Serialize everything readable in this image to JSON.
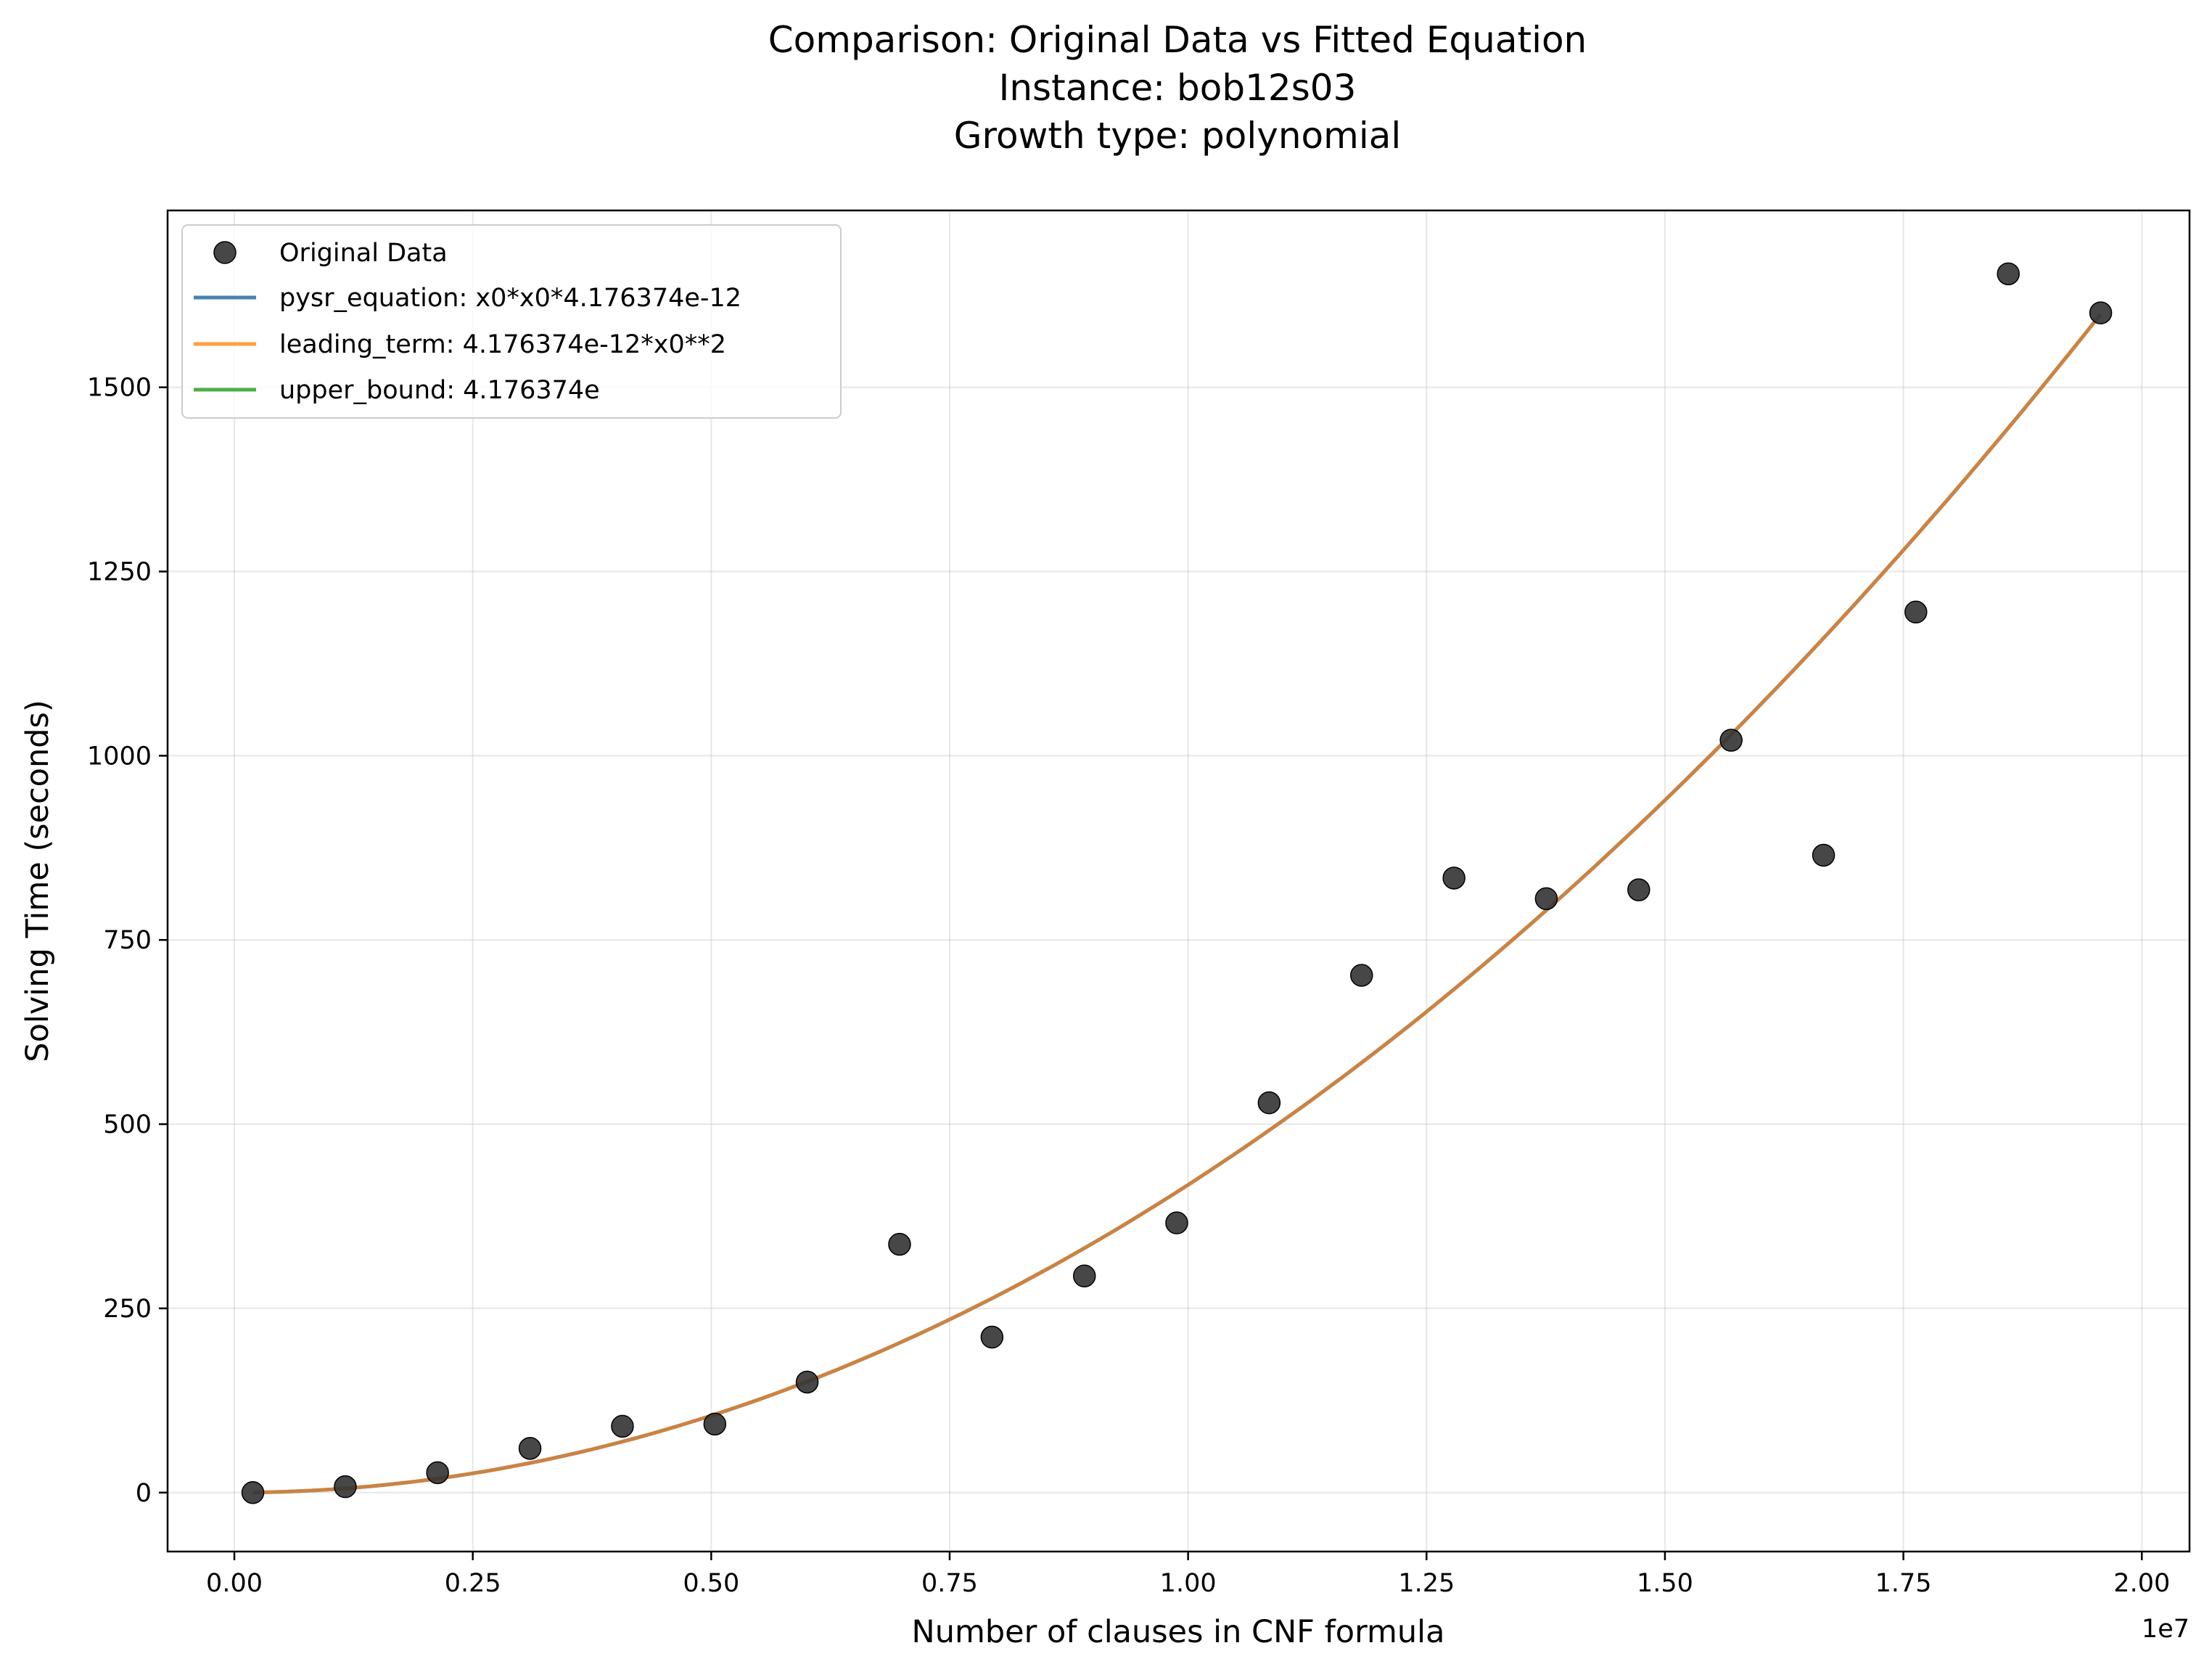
{
  "chart_data": {
    "type": "scatter",
    "title_lines": [
      "Comparison: Original Data vs Fitted Equation",
      "Instance: bob12s03",
      "Growth type: polynomial"
    ],
    "xlabel": "Number of clauses in CNF formula",
    "ylabel": "Solving Time (seconds)",
    "x_offset_label": "1e7",
    "xlim": [
      -0.07,
      2.05
    ],
    "ylim": [
      -80,
      1740
    ],
    "x_unit_scale": 10000000,
    "xticks": [
      0.0,
      0.25,
      0.5,
      0.75,
      1.0,
      1.25,
      1.5,
      1.75,
      2.0
    ],
    "xtick_labels": [
      "0.00",
      "0.25",
      "0.50",
      "0.75",
      "1.00",
      "1.25",
      "1.50",
      "1.75",
      "2.00"
    ],
    "yticks": [
      0,
      250,
      500,
      750,
      1000,
      1250,
      1500
    ],
    "ytick_labels": [
      "0",
      "250",
      "500",
      "750",
      "1000",
      "1250",
      "1500"
    ],
    "grid": true,
    "legend_position": "top-left",
    "scatter": {
      "name": "Original Data",
      "color": "#333333",
      "x": [
        0.0194,
        0.1163,
        0.2131,
        0.31,
        0.4069,
        0.5038,
        0.6006,
        0.6975,
        0.7944,
        0.8913,
        0.9881,
        1.085,
        1.1819,
        1.2788,
        1.3756,
        1.4725,
        1.5694,
        1.6663,
        1.7631,
        1.86,
        1.9569
      ],
      "y": [
        0,
        8,
        27,
        60,
        90,
        93,
        150,
        337,
        211,
        294,
        366,
        529,
        702,
        834,
        806,
        818,
        1021,
        865,
        1195,
        1654,
        1601
      ]
    },
    "series": [
      {
        "name": "pysr_equation: x0*x0*4.176374e-12",
        "color": "#4682b4",
        "coefficient": 4.176374e-12,
        "x_range": [
          0.0194,
          1.9569
        ]
      },
      {
        "name": "leading_term: 4.176374e-12*x0**2",
        "color": "#ff9f3e",
        "coefficient": 4.176374e-12,
        "x_range": [
          0.0194,
          1.9569
        ]
      },
      {
        "name": "upper_bound: 4.176374e",
        "color": "#4daf4a",
        "coefficient": 4.176374e-12,
        "x_range": [
          0.0194,
          1.9569
        ]
      }
    ],
    "overlap_color": "#d3833a"
  }
}
